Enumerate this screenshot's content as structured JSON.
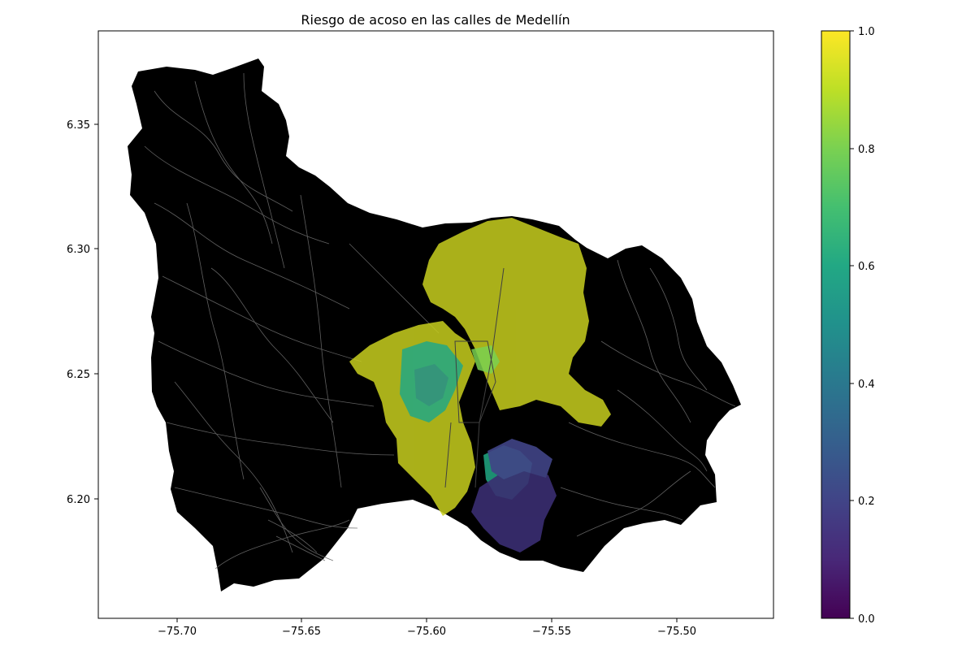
{
  "figure": {
    "title": "Riesgo de acoso en las calles de Medellín"
  },
  "axes": {
    "x_ticks": [
      "−75.70",
      "−75.65",
      "−75.60",
      "−75.55",
      "−75.50"
    ],
    "y_ticks": [
      "6.20",
      "6.25",
      "6.30",
      "6.35"
    ]
  },
  "colorbar": {
    "ticks": [
      "0.0",
      "0.2",
      "0.4",
      "0.6",
      "0.8",
      "1.0"
    ],
    "colormap": "viridis",
    "stops": [
      "#440154",
      "#414487",
      "#2a788e",
      "#22a884",
      "#7ad151",
      "#fde725"
    ]
  },
  "map": {
    "background_color": "#000000",
    "minor_street_color": "#6b6b6b",
    "colors": {
      "high_risk": "#c8cf1e",
      "mid_risk": "#22a884",
      "low_risk": "#3a2e72"
    }
  }
}
